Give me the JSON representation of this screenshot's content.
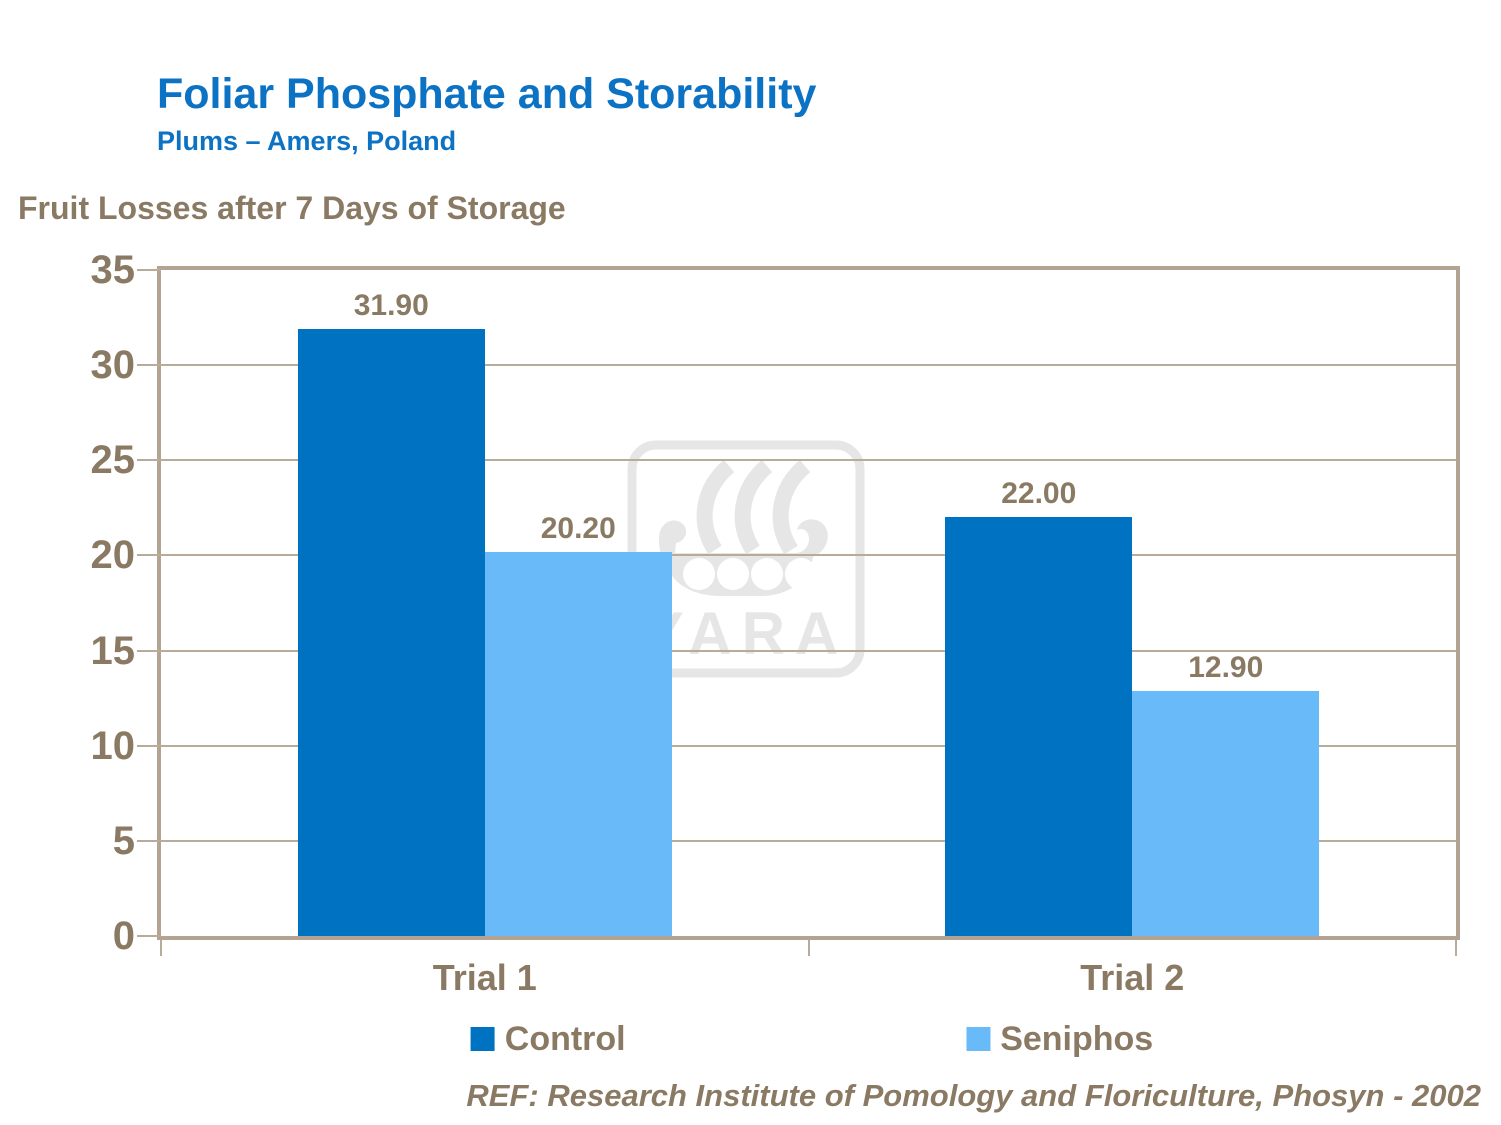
{
  "slide": {
    "title": "Foliar Phosphate and Storability",
    "subtitle": "Plums – Amers, Poland",
    "footer": "REF: Research Institute of Pomology and Floriculture, Phosyn - 2002",
    "watermark_text": "YARA"
  },
  "colors": {
    "title_blue": "#0c72c4",
    "text_brown": "#8a7a64",
    "grid": "#b9ab99",
    "frame": "#b3a392",
    "control": "#0072c2",
    "seniphos": "#68bbf8",
    "watermark": "#e6e6e6"
  },
  "chart_data": {
    "type": "bar",
    "title": "Fruit Losses after 7 Days of Storage",
    "categories": [
      "Trial 1",
      "Trial 2"
    ],
    "series": [
      {
        "name": "Control",
        "color": "#0072c2",
        "values": [
          31.9,
          22.0
        ]
      },
      {
        "name": "Seniphos",
        "color": "#68bbf8",
        "values": [
          20.2,
          12.9
        ]
      }
    ],
    "value_labels": [
      [
        "31.90",
        "22.00"
      ],
      [
        "20.20",
        "12.90"
      ]
    ],
    "ylim": [
      0,
      35
    ],
    "ytick_step": 5,
    "yticks": [
      0,
      5,
      10,
      15,
      20,
      25,
      30,
      35
    ],
    "grid": true,
    "legend_position": "bottom",
    "value_label_format": "0.00"
  }
}
